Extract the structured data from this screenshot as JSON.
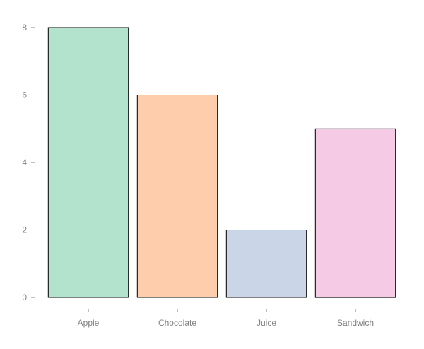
{
  "chart_data": {
    "type": "bar",
    "categories": [
      "Apple",
      "Chocolate",
      "Juice",
      "Sandwich"
    ],
    "values": [
      8,
      6,
      2,
      5
    ],
    "colors": [
      "#b3e2cd",
      "#fdcdac",
      "#cbd5e8",
      "#f4cae4"
    ],
    "title": "",
    "xlabel": "",
    "ylabel": "",
    "ylim": [
      0,
      8
    ],
    "yticks": [
      0,
      2,
      4,
      6,
      8
    ],
    "grid": false,
    "legend": "none"
  }
}
